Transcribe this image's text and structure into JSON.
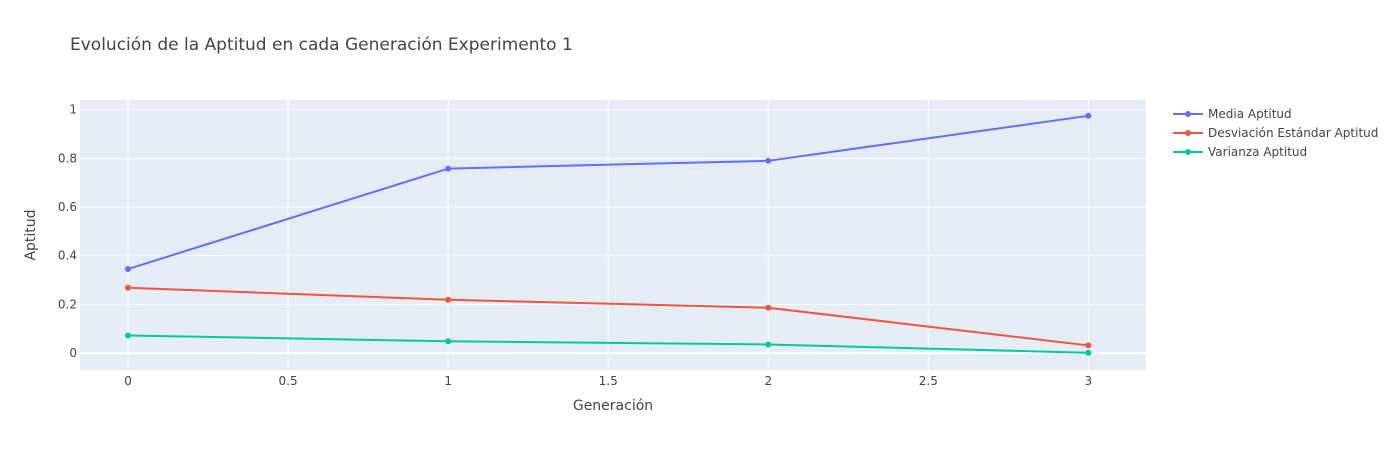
{
  "chart_data": {
    "type": "line",
    "title": "Evolución de la Aptitud en cada Generación Experimento 1",
    "xlabel": "Generación",
    "ylabel": "Aptitud",
    "x": [
      0,
      1,
      2,
      3
    ],
    "xlim": [
      -0.15,
      3.18
    ],
    "ylim": [
      -0.07,
      1.04
    ],
    "xticks": [
      0,
      0.5,
      1,
      1.5,
      2,
      2.5,
      3
    ],
    "xtick_labels": [
      "0",
      "0.5",
      "1",
      "1.5",
      "2",
      "2.5",
      "3"
    ],
    "yticks": [
      0,
      0.2,
      0.4,
      0.6,
      0.8,
      1
    ],
    "ytick_labels": [
      "0",
      "0.2",
      "0.4",
      "0.6",
      "0.8",
      "1"
    ],
    "grid": true,
    "legend_position": "right",
    "series": [
      {
        "name": "Media Aptitud",
        "color": "#636efa",
        "values": [
          0.345,
          0.758,
          0.79,
          0.975
        ]
      },
      {
        "name": "Desviación Estándar Aptitud",
        "color": "#ef553b",
        "values": [
          0.268,
          0.219,
          0.186,
          0.031
        ]
      },
      {
        "name": "Varianza Aptitud",
        "color": "#00cc96",
        "values": [
          0.072,
          0.048,
          0.035,
          0.001
        ]
      }
    ]
  },
  "colors": {
    "plot_background": "#e5ecf6",
    "grid": "#ffffff",
    "text": "#444444"
  }
}
